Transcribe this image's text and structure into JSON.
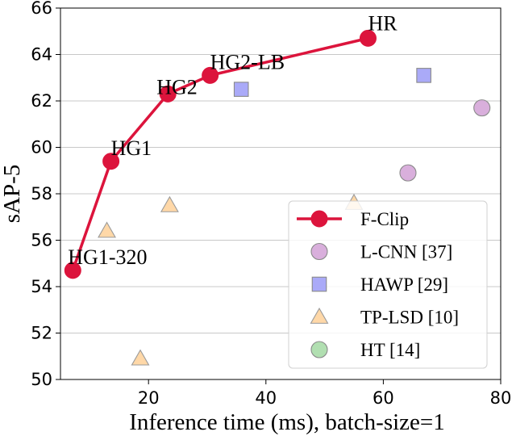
{
  "chart_data": {
    "type": "scatter",
    "xlabel": "Inference time (ms), batch-size=1",
    "ylabel": "sAP-5",
    "xlim": [
      5,
      80
    ],
    "ylim": [
      50,
      66
    ],
    "xticks": [
      20,
      40,
      60,
      80
    ],
    "yticks": [
      50,
      52,
      54,
      56,
      58,
      60,
      62,
      64,
      66
    ],
    "grid": "horizontal",
    "legend_position": "lower-right",
    "series": [
      {
        "name": "F-Clip",
        "marker": "circle",
        "line": true,
        "color": "#dc143c",
        "points": [
          {
            "x": 7.1,
            "y": 54.7,
            "label": "HG1-320"
          },
          {
            "x": 13.6,
            "y": 59.4,
            "label": "HG1"
          },
          {
            "x": 23.3,
            "y": 62.3,
            "label": "HG2"
          },
          {
            "x": 30.5,
            "y": 63.1,
            "label": "HG2-LB"
          },
          {
            "x": 57.4,
            "y": 64.7,
            "label": "HR"
          }
        ]
      },
      {
        "name": "L-CNN [37]",
        "marker": "circle",
        "color": "#d5a6d8",
        "points": [
          {
            "x": 64.2,
            "y": 58.9
          },
          {
            "x": 76.8,
            "y": 61.7
          }
        ]
      },
      {
        "name": "HAWP [29]",
        "marker": "square",
        "color": "#aaaaf8",
        "points": [
          {
            "x": 35.8,
            "y": 62.5
          },
          {
            "x": 66.9,
            "y": 63.1
          }
        ]
      },
      {
        "name": "TP-LSD [10]",
        "marker": "triangle",
        "color": "#ffd8a8",
        "points": [
          {
            "x": 12.9,
            "y": 56.4
          },
          {
            "x": 18.6,
            "y": 50.9
          },
          {
            "x": 23.6,
            "y": 57.5
          },
          {
            "x": 55.0,
            "y": 57.6
          }
        ]
      },
      {
        "name": "HT [14]",
        "marker": "circle",
        "color": "#a8dca8",
        "points": []
      }
    ]
  }
}
